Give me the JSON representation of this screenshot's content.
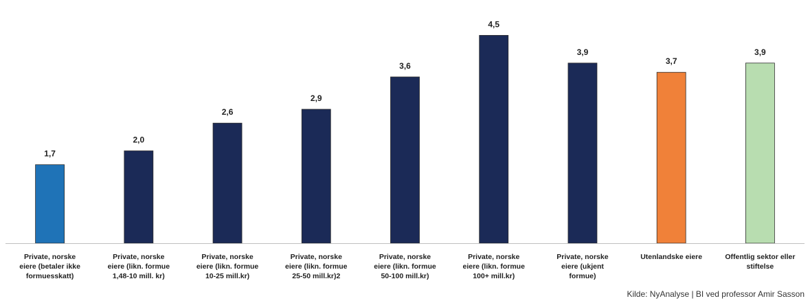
{
  "chart_data": {
    "type": "bar",
    "categories": [
      [
        "Private, norske",
        "eiere (betaler ikke",
        "formuesskatt)"
      ],
      [
        "Private, norske",
        "eiere (likn. formue",
        "1,48-10 mill. kr)"
      ],
      [
        "Private, norske",
        "eiere (likn. formue",
        "10-25 mill.kr)"
      ],
      [
        "Private, norske",
        "eiere (likn. formue",
        "25-50 mill.kr)2"
      ],
      [
        "Private, norske",
        "eiere (likn. formue",
        "50-100 mill.kr)"
      ],
      [
        "Private, norske",
        "eiere (likn. formue",
        "100+ mill.kr)"
      ],
      [
        "Private, norske",
        "eiere (ukjent",
        "formue)"
      ],
      [
        "Utenlandske eiere"
      ],
      [
        "Offentlig sektor eller",
        "stiftelse"
      ]
    ],
    "values": [
      1.7,
      2.0,
      2.6,
      2.9,
      3.6,
      4.5,
      3.9,
      3.7,
      3.9
    ],
    "value_labels": [
      "1,7",
      "2,0",
      "2,6",
      "2,9",
      "3,6",
      "4,5",
      "3,9",
      "3,7",
      "3,9"
    ],
    "colors": [
      "#1f73b7",
      "#1b2a57",
      "#1b2a57",
      "#1b2a57",
      "#1b2a57",
      "#1b2a57",
      "#1b2a57",
      "#f08139",
      "#b8ddb0"
    ],
    "ylim": [
      0,
      4.7
    ],
    "grid": false,
    "legend": "none"
  },
  "source": "Kilde: NyAnalyse | BI ved professor Amir Sasson"
}
